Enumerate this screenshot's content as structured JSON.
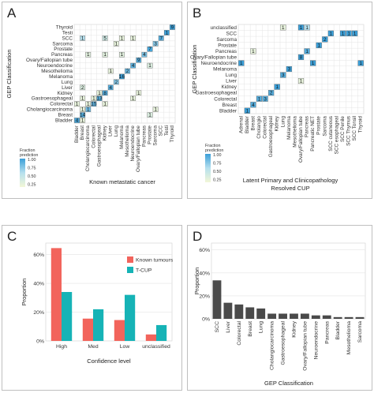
{
  "panels": {
    "a": "A",
    "b": "B",
    "c": "C",
    "d": "D"
  },
  "colors": {
    "gradient_high": "#3b9fd8",
    "gradient_mid": "#b6e0ee",
    "gradient_low": "#f3f7d7",
    "known_tumours": "#f2645c",
    "t_cup": "#16b3b6",
    "bar_d": "#4a4a4a",
    "grid": "#e4e4e4"
  },
  "chart_data": [
    {
      "id": "A",
      "type": "heatmap",
      "xlabel": "Known metastatic cancer",
      "ylabel": "GEP Classification",
      "legend_title": "Fraction prediction",
      "legend_ticks": [
        "1.00",
        "0.75",
        "0.50",
        "0.25"
      ],
      "x_categories": [
        "Bladder",
        "Breast",
        "Cholangiocarcinoma",
        "Colorectal",
        "Gastroesophageal",
        "Kidney",
        "Liver",
        "Lung",
        "Melanoma",
        "Mesothelioma",
        "Neuroendocrine",
        "Ovary/Fallopian tube",
        "Pancreas",
        "Prostate",
        "Sarcoma",
        "SCC",
        "Testi",
        "Thyroid"
      ],
      "y_categories": [
        "Thyroid",
        "Testi",
        "SCC",
        "Sarcoma",
        "Prostate",
        "Pancreas",
        "Ovary/Fallopian tube",
        "Neuroendocrine",
        "Mesothelioma",
        "Melanoma",
        "Lung",
        "Liver",
        "Kidney",
        "Gastroesophageal",
        "Colorectal",
        "Cholangiocarcinoma",
        "Breast",
        "Bladder"
      ],
      "cells": [
        {
          "x": "Thyroid",
          "y": "Thyroid",
          "v": "9",
          "f": 1.0
        },
        {
          "x": "Testi",
          "y": "Testi",
          "v": "1",
          "f": 1.0
        },
        {
          "x": "SCC",
          "y": "SCC",
          "v": "7",
          "f": 0.9
        },
        {
          "x": "Sarcoma",
          "y": "Sarcoma",
          "v": "3",
          "f": 0.7
        },
        {
          "x": "Prostate",
          "y": "Prostate",
          "v": "7",
          "f": 0.95
        },
        {
          "x": "Pancreas",
          "y": "Pancreas",
          "v": "4",
          "f": 0.75
        },
        {
          "x": "Ovary/Fallopian tube",
          "y": "Ovary/Fallopian tube",
          "v": "9",
          "f": 0.9
        },
        {
          "x": "Neuroendocrine",
          "y": "Neuroendocrine",
          "v": "4",
          "f": 0.85
        },
        {
          "x": "Mesothelioma",
          "y": "Mesothelioma",
          "v": "2",
          "f": 0.8
        },
        {
          "x": "Melanoma",
          "y": "Melanoma",
          "v": "16",
          "f": 1.0
        },
        {
          "x": "Lung",
          "y": "Lung",
          "v": "2",
          "f": 0.7
        },
        {
          "x": "Liver",
          "y": "Liver",
          "v": "4",
          "f": 0.9
        },
        {
          "x": "Kidney",
          "y": "Kidney",
          "v": "8",
          "f": 0.9
        },
        {
          "x": "Gastroesophageal",
          "y": "Gastroesophageal",
          "v": "13",
          "f": 0.9
        },
        {
          "x": "Colorectal",
          "y": "Colorectal",
          "v": "15",
          "f": 0.85
        },
        {
          "x": "Cholangiocarcinoma",
          "y": "Cholangiocarcinoma",
          "v": "1",
          "f": 0.8
        },
        {
          "x": "Breast",
          "y": "Breast",
          "v": "14",
          "f": 0.9
        },
        {
          "x": "Bladder",
          "y": "Bladder",
          "v": "4",
          "f": 0.95
        },
        {
          "x": "Breast",
          "y": "SCC",
          "v": "1",
          "f": 0.5
        },
        {
          "x": "Kidney",
          "y": "SCC",
          "v": "5",
          "f": 0.3
        },
        {
          "x": "Melanoma",
          "y": "SCC",
          "v": "1",
          "f": 0.1
        },
        {
          "x": "Neuroendocrine",
          "y": "SCC",
          "v": "1",
          "f": 0.1
        },
        {
          "x": "Lung",
          "y": "Sarcoma",
          "v": "1",
          "f": 0.1
        },
        {
          "x": "Melanoma",
          "y": "Pancreas",
          "v": "1",
          "f": 0.15
        },
        {
          "x": "Cholangiocarcinoma",
          "y": "Pancreas",
          "v": "1",
          "f": 0.15
        },
        {
          "x": "Kidney",
          "y": "Pancreas",
          "v": "1",
          "f": 0.15
        },
        {
          "x": "Prostate",
          "y": "Neuroendocrine",
          "v": "1",
          "f": 0.2
        },
        {
          "x": "Liver",
          "y": "Mesothelioma",
          "v": "1",
          "f": 0.1
        },
        {
          "x": "Breast",
          "y": "Liver",
          "v": "2",
          "f": 0.2
        },
        {
          "x": "Gastroesophageal",
          "y": "Kidney",
          "v": "1",
          "f": 0.1
        },
        {
          "x": "Ovary/Fallopian tube",
          "y": "Kidney",
          "v": "1",
          "f": 0.1
        },
        {
          "x": "Breast",
          "y": "Gastroesophageal",
          "v": "1",
          "f": 0.1
        },
        {
          "x": "Colorectal",
          "y": "Gastroesophageal",
          "v": "1",
          "f": 0.1
        },
        {
          "x": "Neuroendocrine",
          "y": "Gastroesophageal",
          "v": "1",
          "f": 0.1
        },
        {
          "x": "Cholangiocarcinoma",
          "y": "Colorectal",
          "v": "1",
          "f": 0.1
        },
        {
          "x": "Kidney",
          "y": "Colorectal",
          "v": "1",
          "f": 0.1
        },
        {
          "x": "Bladder",
          "y": "Colorectal",
          "v": "1",
          "f": 0.1
        },
        {
          "x": "Breast",
          "y": "Cholangiocarcinoma",
          "v": "1",
          "f": 0.1
        },
        {
          "x": "Sarcoma",
          "y": "Cholangiocarcinoma",
          "v": "1",
          "f": 0.1
        },
        {
          "x": "Prostate",
          "y": "Breast",
          "v": "1",
          "f": 0.2
        },
        {
          "x": "Breast",
          "y": "Bladder",
          "v": "1",
          "f": 0.1
        }
      ]
    },
    {
      "id": "B",
      "type": "heatmap",
      "xlabel": "Latent Primary and Clinicopathology Resolved CUP",
      "xlabel_lines": [
        "Latent Primary and Clinicopathology",
        "Resolved CUP"
      ],
      "ylabel": "GEP Classification",
      "legend_title": "Fraction prediction",
      "legend_ticks": [
        "1.00",
        "0.75",
        "0.50",
        "0.25"
      ],
      "x_categories": [
        "Adrenal",
        "Bladder",
        "Breast",
        "Cholangio",
        "Colorectal",
        "Gastroesophageal",
        "Kidney",
        "Lung",
        "Melanoma",
        "Mesothelioma",
        "Ovary/Fallopian tube",
        "Pancreas",
        "Pancreatic NET",
        "Prostate",
        "Sarcoma",
        "SCC cutaneous",
        "SCC esophageal",
        "SCC Penile",
        "SCC Thymus",
        "SCC Tonsil",
        "Thyroid"
      ],
      "y_categories": [
        "unclassified",
        "SCC",
        "Sarcoma",
        "Prostate",
        "Pancreas",
        "Ovary/Fallopian tube",
        "Neuroendocrine",
        "Melanoma",
        "Lung",
        "Liver",
        "Kidney",
        "Gastroesophageal",
        "Colorectal",
        "Breast",
        "Bladder"
      ],
      "cells": [
        {
          "x": "Lung",
          "y": "unclassified",
          "v": "1",
          "f": 0.1
        },
        {
          "x": "Ovary/Fallopian tube",
          "y": "unclassified",
          "v": "1",
          "f": 1.0
        },
        {
          "x": "Pancreas",
          "y": "unclassified",
          "v": "1",
          "f": 0.5
        },
        {
          "x": "SCC cutaneous",
          "y": "SCC",
          "v": "1",
          "f": 1.0
        },
        {
          "x": "SCC Penile",
          "y": "SCC",
          "v": "1",
          "f": 1.0
        },
        {
          "x": "SCC Thymus",
          "y": "SCC",
          "v": "1",
          "f": 1.0
        },
        {
          "x": "SCC Tonsil",
          "y": "SCC",
          "v": "1",
          "f": 1.0
        },
        {
          "x": "Sarcoma",
          "y": "Sarcoma",
          "v": "2",
          "f": 1.0
        },
        {
          "x": "Prostate",
          "y": "Prostate",
          "v": "1",
          "f": 1.0
        },
        {
          "x": "Breast",
          "y": "Pancreas",
          "v": "1",
          "f": 0.1
        },
        {
          "x": "Pancreas",
          "y": "Pancreas",
          "v": "1",
          "f": 0.9
        },
        {
          "x": "Ovary/Fallopian tube",
          "y": "Ovary/Fallopian tube",
          "v": "8",
          "f": 1.0
        },
        {
          "x": "Adrenal",
          "y": "Neuroendocrine",
          "v": "1",
          "f": 1.0
        },
        {
          "x": "Pancreatic NET",
          "y": "Neuroendocrine",
          "v": "1",
          "f": 1.0
        },
        {
          "x": "Thyroid",
          "y": "Neuroendocrine",
          "v": "1",
          "f": 1.0
        },
        {
          "x": "Melanoma",
          "y": "Melanoma",
          "v": "3",
          "f": 1.0
        },
        {
          "x": "Lung",
          "y": "Lung",
          "v": "3",
          "f": 0.9
        },
        {
          "x": "Ovary/Fallopian tube",
          "y": "Liver",
          "v": "1",
          "f": 0.1
        },
        {
          "x": "Kidney",
          "y": "Kidney",
          "v": "1",
          "f": 1.0
        },
        {
          "x": "Gastroesophageal",
          "y": "Gastroesophageal",
          "v": "2",
          "f": 0.9
        },
        {
          "x": "Cholangio",
          "y": "Colorectal",
          "v": "1",
          "f": 0.9
        },
        {
          "x": "Colorectal",
          "y": "Colorectal",
          "v": "3",
          "f": 0.9
        },
        {
          "x": "Breast",
          "y": "Breast",
          "v": "4",
          "f": 0.9
        },
        {
          "x": "Bladder",
          "y": "Bladder",
          "v": "1",
          "f": 1.0
        }
      ]
    },
    {
      "id": "C",
      "type": "bar",
      "xlabel": "Confidence level",
      "ylabel": "Proportion",
      "categories": [
        "High",
        "Med",
        "Low",
        "unclassified"
      ],
      "yticks": [
        "0%",
        "20%",
        "40%",
        "60%"
      ],
      "ylim": [
        0,
        0.68
      ],
      "legend_position": "top-right",
      "series": [
        {
          "name": "Known tumours",
          "values": [
            0.645,
            0.155,
            0.145,
            0.045
          ]
        },
        {
          "name": "T-CUP",
          "values": [
            0.34,
            0.22,
            0.32,
            0.11
          ]
        }
      ]
    },
    {
      "id": "D",
      "type": "bar",
      "xlabel": "GEP Classification",
      "ylabel": "Proportion",
      "categories": [
        "SCC",
        "Liver",
        "Colorectal",
        "Breast",
        "Lung",
        "Cholangiocarcinoma",
        "Gastroesophageal",
        "Kidney",
        "Ovary/Fallopian tube",
        "Neuroendocrine",
        "Pancreas",
        "Bladder",
        "Mesothelioma",
        "Sarcoma"
      ],
      "values": [
        0.335,
        0.14,
        0.125,
        0.1,
        0.09,
        0.045,
        0.045,
        0.045,
        0.045,
        0.03,
        0.03,
        0.015,
        0.015,
        0.015
      ],
      "yticks": [
        "0%",
        "20%",
        "40%",
        "60%"
      ],
      "ylim": [
        0,
        0.66
      ]
    }
  ]
}
